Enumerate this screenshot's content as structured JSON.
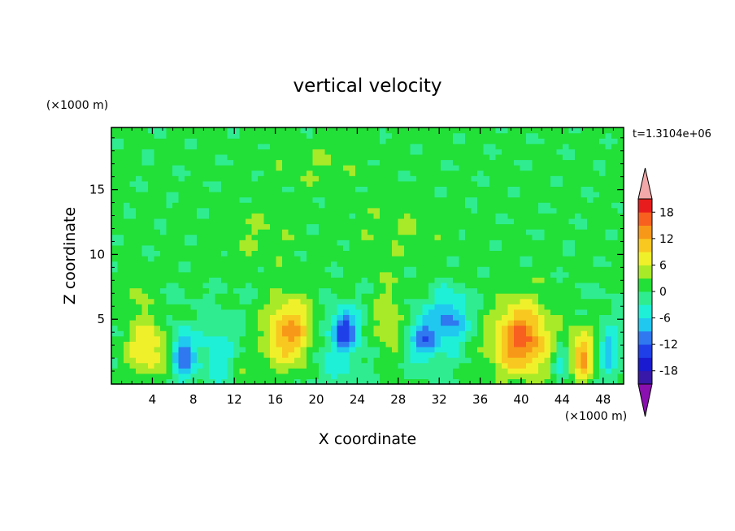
{
  "chart_data": {
    "type": "heatmap",
    "title": "vertical velocity",
    "xlabel": "X coordinate",
    "ylabel": "Z coordinate",
    "x_unit": "(×1000 m)",
    "y_unit": "(×1000 m)",
    "time_label": "t=1.3104e+06",
    "xlim": [
      0,
      50
    ],
    "ylim": [
      0,
      19.8
    ],
    "x_ticks": [
      4,
      8,
      12,
      16,
      20,
      24,
      28,
      32,
      36,
      40,
      44,
      48
    ],
    "y_ticks": [
      5,
      10,
      15
    ],
    "colorbar": {
      "levels": [
        -21,
        -18,
        -15,
        -12,
        -9,
        -6,
        -3,
        0,
        3,
        6,
        9,
        12,
        15,
        18,
        21
      ],
      "tick_labels": [
        18,
        12,
        6,
        0,
        -6,
        -12,
        -18
      ],
      "colors": [
        "#7a10a8",
        "#3818a8",
        "#1a1ad0",
        "#1f40e8",
        "#2f78f0",
        "#20c8f0",
        "#1ef0d8",
        "#30ec90",
        "#22e038",
        "#a8ea28",
        "#f0f02a",
        "#f8c820",
        "#f89818",
        "#f86020",
        "#e81c1c",
        "#f2a8a8"
      ],
      "over_color": "#f2a8a8",
      "under_color": "#8a10b0"
    },
    "features": [
      {
        "x": 3.5,
        "z": 2.8,
        "amplitude": 9,
        "sx": 1.5,
        "sz": 1.6
      },
      {
        "x": 7.0,
        "z": 2.3,
        "amplitude": -12,
        "sx": 0.8,
        "sz": 1.3
      },
      {
        "x": 10.5,
        "z": 2.2,
        "amplitude": -5,
        "sx": 1.4,
        "sz": 1.6
      },
      {
        "x": 12.5,
        "z": 1.2,
        "amplitude": 3,
        "sx": 1.0,
        "sz": 0.8
      },
      {
        "x": 17.5,
        "z": 4.0,
        "amplitude": 13,
        "sx": 1.8,
        "sz": 1.9
      },
      {
        "x": 22.8,
        "z": 4.3,
        "amplitude": -12,
        "sx": 0.8,
        "sz": 1.0
      },
      {
        "x": 21.5,
        "z": 2.5,
        "amplitude": -5,
        "sx": 1.8,
        "sz": 2.0
      },
      {
        "x": 27.0,
        "z": 5.0,
        "amplitude": 6,
        "sx": 1.0,
        "sz": 2.0
      },
      {
        "x": 30.5,
        "z": 3.5,
        "amplitude": -10,
        "sx": 1.0,
        "sz": 1.2
      },
      {
        "x": 33.0,
        "z": 5.0,
        "amplitude": -10,
        "sx": 1.2,
        "sz": 1.5
      },
      {
        "x": 40.0,
        "z": 3.5,
        "amplitude": 16,
        "sx": 2.0,
        "sz": 2.0
      },
      {
        "x": 43.8,
        "z": 2.0,
        "amplitude": -6,
        "sx": 0.6,
        "sz": 1.0
      },
      {
        "x": 46.0,
        "z": 2.2,
        "amplitude": 12,
        "sx": 0.9,
        "sz": 1.5
      },
      {
        "x": 48.5,
        "z": 2.5,
        "amplitude": -8,
        "sx": 0.7,
        "sz": 1.4
      },
      {
        "x": 2.5,
        "z": 7.0,
        "amplitude": 4,
        "sx": 0.8,
        "sz": 1.2
      },
      {
        "x": 14.0,
        "z": 11.5,
        "amplitude": 2,
        "sx": 2.5,
        "sz": 1.5
      },
      {
        "x": 28.0,
        "z": 12.0,
        "amplitude": 2,
        "sx": 3.0,
        "sz": 1.5
      },
      {
        "x": 20.0,
        "z": 17.0,
        "amplitude": 2,
        "sx": 3.0,
        "sz": 1.2
      }
    ]
  }
}
